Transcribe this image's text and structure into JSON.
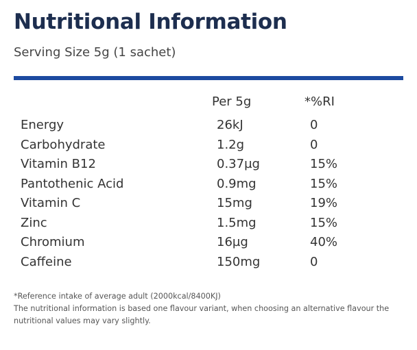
{
  "title": "Nutritional Information",
  "serving_size": "Serving Size 5g (1 sachet)",
  "accent_color": "#1c4aa0",
  "table": {
    "headers": {
      "name": "",
      "per": "Per 5g",
      "ri": "*%RI"
    },
    "rows": [
      {
        "name": "Energy",
        "per": "26kJ",
        "ri": "0"
      },
      {
        "name": "Carbohydrate",
        "per": "1.2g",
        "ri": "0"
      },
      {
        "name": "Vitamin B12",
        "per": "0.37µg",
        "ri": "15%"
      },
      {
        "name": "Pantothenic Acid",
        "per": "0.9mg",
        "ri": "15%"
      },
      {
        "name": "Vitamin C",
        "per": "15mg",
        "ri": "19%"
      },
      {
        "name": "Zinc",
        "per": "1.5mg",
        "ri": "15%"
      },
      {
        "name": "Chromium",
        "per": "16µg",
        "ri": "40%"
      },
      {
        "name": "Caffeine",
        "per": "150mg",
        "ri": "0"
      }
    ]
  },
  "footnotes": {
    "reference": "*Reference intake of average adult (2000kcal/8400KJ)",
    "variant_line1": "The nutritional information is based one flavour variant, when choosing an alternative flavour the",
    "variant_line2": "nutritional values may vary slightly."
  }
}
